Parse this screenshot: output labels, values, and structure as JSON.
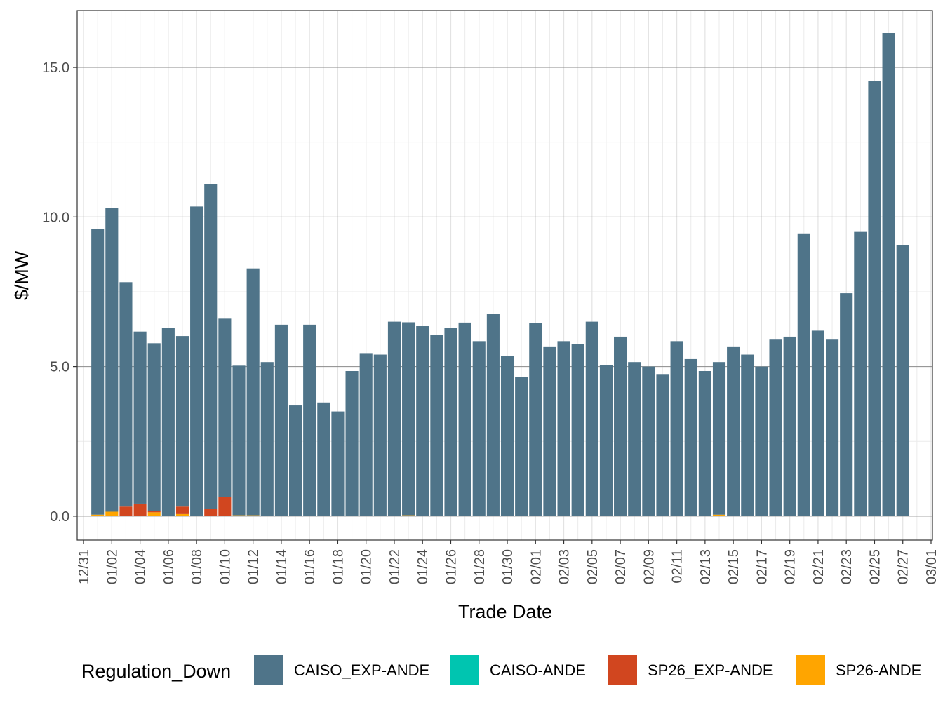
{
  "chart_data": {
    "type": "bar",
    "stacked": true,
    "title": "",
    "xlabel": "Trade Date",
    "ylabel": "$/MW",
    "ylim": [
      -0.8,
      16.9
    ],
    "yticks": [
      0.0,
      5.0,
      10.0,
      15.0
    ],
    "ytick_labels": [
      "0.0",
      "5.0",
      "10.0",
      "15.0"
    ],
    "x_tick_labels": [
      "12/31",
      "01/02",
      "01/04",
      "01/06",
      "01/08",
      "01/10",
      "01/12",
      "01/14",
      "01/16",
      "01/18",
      "01/20",
      "01/22",
      "01/24",
      "01/26",
      "01/28",
      "01/30",
      "02/01",
      "02/03",
      "02/05",
      "02/07",
      "02/09",
      "02/11",
      "02/13",
      "02/15",
      "02/17",
      "02/19",
      "02/21",
      "02/23",
      "02/25",
      "02/27",
      "03/01"
    ],
    "x_tick_day_index": [
      0,
      2,
      4,
      6,
      8,
      10,
      12,
      14,
      16,
      18,
      20,
      22,
      24,
      26,
      28,
      30,
      32,
      34,
      36,
      38,
      40,
      42,
      44,
      46,
      48,
      50,
      52,
      54,
      56,
      58,
      60
    ],
    "first_bar_day_index": 1,
    "legend": {
      "title": "Regulation_Down",
      "position": "bottom",
      "entries": [
        {
          "name": "CAISO_EXP-ANDE",
          "color": "#4f7489"
        },
        {
          "name": "CAISO-ANDE",
          "color": "#00c5b0"
        },
        {
          "name": "SP26_EXP-ANDE",
          "color": "#d1461f"
        },
        {
          "name": "SP26-ANDE",
          "color": "#ffa500"
        }
      ]
    },
    "series": [
      {
        "name": "CAISO_EXP-ANDE",
        "color": "#4f7489",
        "values": [
          9.55,
          10.15,
          7.5,
          5.75,
          5.6,
          6.3,
          5.7,
          10.35,
          10.85,
          5.95,
          5.0,
          8.25,
          5.15,
          6.4,
          3.7,
          6.4,
          3.8,
          3.5,
          4.85,
          5.45,
          5.4,
          6.5,
          6.45,
          6.35,
          6.05,
          6.3,
          6.45,
          5.85,
          6.75,
          5.35,
          4.65,
          6.45,
          5.65,
          5.85,
          5.75,
          6.5,
          5.05,
          6.0,
          5.15,
          5.0,
          4.75,
          5.85,
          5.25,
          4.85,
          5.1,
          5.65,
          5.4,
          5.0,
          5.9,
          6.0,
          9.45,
          6.2,
          5.9,
          7.45,
          9.5,
          14.55,
          16.15,
          9.05
        ]
      },
      {
        "name": "CAISO-ANDE",
        "color": "#00c5b0",
        "values": [
          0,
          0,
          0,
          0,
          0,
          0,
          0,
          0,
          0,
          0,
          0,
          0,
          0,
          0,
          0,
          0,
          0,
          0,
          0,
          0,
          0,
          0,
          0,
          0,
          0,
          0,
          0,
          0,
          0,
          0,
          0,
          0,
          0,
          0,
          0,
          0,
          0,
          0,
          0,
          0,
          0,
          0,
          0,
          0,
          0,
          0,
          0,
          0,
          0,
          0,
          0,
          0,
          0,
          0,
          0,
          0,
          0,
          0
        ]
      },
      {
        "name": "SP26_EXP-ANDE",
        "color": "#d1461f",
        "values": [
          0,
          0,
          0.32,
          0.42,
          0.05,
          0,
          0.25,
          0,
          0.25,
          0.65,
          0,
          0,
          0,
          0,
          0,
          0,
          0,
          0,
          0,
          0,
          0,
          0,
          0,
          0,
          0,
          0,
          0,
          0,
          0,
          0,
          0,
          0,
          0,
          0,
          0,
          0,
          0,
          0,
          0,
          0,
          0,
          0,
          0,
          0,
          0,
          0,
          0,
          0,
          0,
          0,
          0,
          0,
          0,
          0,
          0,
          0,
          0,
          0
        ]
      },
      {
        "name": "SP26-ANDE",
        "color": "#ffa500",
        "values": [
          0.05,
          0.15,
          0,
          0,
          0.13,
          0,
          0.07,
          0,
          0,
          0,
          0.03,
          0.03,
          0,
          0,
          0,
          0,
          0,
          0,
          0,
          0,
          0,
          0,
          0.03,
          0,
          0,
          0,
          0.02,
          0,
          0,
          0,
          0,
          0,
          0,
          0,
          0,
          0,
          0,
          0,
          0,
          0,
          0,
          0,
          0,
          0,
          0.05,
          0,
          0,
          0,
          0,
          0,
          0,
          0,
          0,
          0,
          0,
          0,
          0,
          0
        ]
      }
    ],
    "stack_order_bottom_to_top": [
      "SP26-ANDE",
      "SP26_EXP-ANDE",
      "CAISO-ANDE",
      "CAISO_EXP-ANDE"
    ]
  }
}
